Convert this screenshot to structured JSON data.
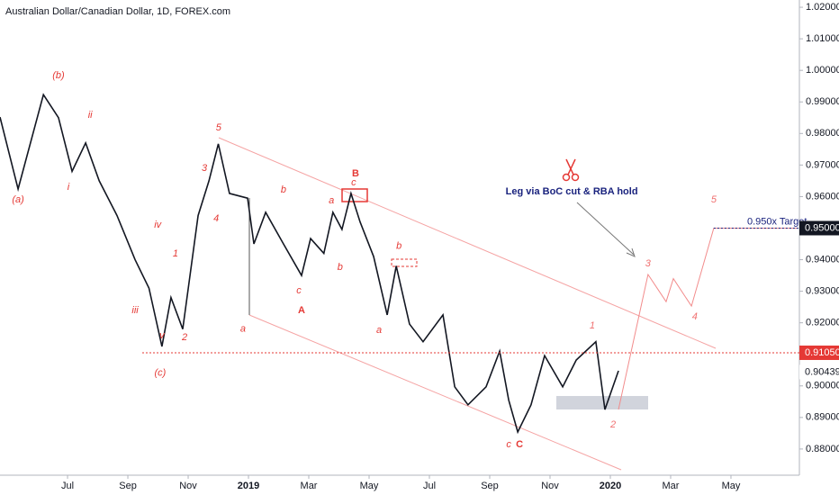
{
  "chart_data": {
    "type": "line",
    "title": "Australian Dollar/Canadian Dollar, 1D, FOREX.com",
    "xlim": [
      3.76,
      30.18
    ],
    "ylim": [
      0.8717,
      1.0223
    ],
    "xticks": [
      {
        "value": 6,
        "label": "Jul"
      },
      {
        "value": 8,
        "label": "Sep"
      },
      {
        "value": 10,
        "label": "Nov"
      },
      {
        "value": 12,
        "label": "2019"
      },
      {
        "value": 14,
        "label": "Mar"
      },
      {
        "value": 16,
        "label": "May"
      },
      {
        "value": 18,
        "label": "Jul"
      },
      {
        "value": 20,
        "label": "Sep"
      },
      {
        "value": 22,
        "label": "Nov"
      },
      {
        "value": 24,
        "label": "2020"
      },
      {
        "value": 26,
        "label": "Mar"
      },
      {
        "value": 28,
        "label": "May"
      }
    ],
    "yticks": [
      {
        "value": 0.88,
        "label": "0.88000"
      },
      {
        "value": 0.89,
        "label": "0.89000"
      },
      {
        "value": 0.9,
        "label": "0.90000"
      },
      {
        "value": 0.92,
        "label": "0.92000"
      },
      {
        "value": 0.93,
        "label": "0.93000"
      },
      {
        "value": 0.94,
        "label": "0.94000"
      },
      {
        "value": 0.96,
        "label": "0.96000"
      },
      {
        "value": 0.97,
        "label": "0.97000"
      },
      {
        "value": 0.98,
        "label": "0.98000"
      },
      {
        "value": 0.99,
        "label": "0.99000"
      },
      {
        "value": 1.0,
        "label": "1.00000"
      },
      {
        "value": 1.01,
        "label": "1.01000"
      },
      {
        "value": 1.02,
        "label": "1.02000"
      }
    ],
    "series": [
      {
        "color": "#131722",
        "x": [
          3.76,
          4.36,
          5.2,
          5.7,
          6.15,
          6.6,
          7.05,
          7.64,
          8.24,
          8.7,
          9.13,
          9.43,
          9.82,
          10.33,
          10.69,
          11.0,
          11.37,
          11.97,
          12.18,
          12.57,
          13.16,
          13.76,
          14.06,
          14.5,
          14.8,
          15.1,
          15.4,
          15.7,
          16.15,
          16.6,
          16.9,
          17.34,
          17.79,
          18.45,
          18.84,
          19.28,
          19.88,
          20.33,
          20.63,
          20.93,
          21.37,
          21.82,
          22.42,
          22.87,
          23.52,
          23.82,
          24.27
        ],
        "values": [
          0.9852,
          0.9624,
          0.9923,
          0.985,
          0.968,
          0.977,
          0.965,
          0.954,
          0.94,
          0.931,
          0.9125,
          0.928,
          0.918,
          0.954,
          0.965,
          0.9767,
          0.961,
          0.9595,
          0.945,
          0.955,
          0.945,
          0.935,
          0.9467,
          0.942,
          0.955,
          0.9496,
          0.961,
          0.952,
          0.941,
          0.9225,
          0.938,
          0.9196,
          0.914,
          0.9225,
          0.8997,
          0.894,
          0.8997,
          0.911,
          0.8955,
          0.8854,
          0.894,
          0.9096,
          0.8997,
          0.9082,
          0.914,
          0.8925,
          0.9048
        ]
      },
      {
        "color": "#f28b8b",
        "x": [
          24.27,
          25.25,
          25.85,
          26.09,
          26.69,
          27.43,
          30.18
        ],
        "values": [
          0.8925,
          0.9353,
          0.9267,
          0.934,
          0.9253,
          0.95,
          0.95
        ]
      }
    ],
    "price_tags": [
      {
        "value": 0.95,
        "label": "0.95000",
        "color": "#131722",
        "text": "0.950x Target"
      },
      {
        "value": 0.9105,
        "label": "0.91050",
        "color": "#e53935"
      },
      {
        "value": 0.90439,
        "label": "0.90439",
        "color": "#ffffff"
      }
    ],
    "annotations": [
      {
        "text": "(a)",
        "x": 4.36,
        "y": 0.959,
        "color": "#e53935"
      },
      {
        "text": "(b)",
        "x": 5.7,
        "y": 0.9983,
        "color": "#e53935"
      },
      {
        "text": "ii",
        "x": 6.75,
        "y": 0.9858,
        "color": "#e53935"
      },
      {
        "text": "i",
        "x": 6.03,
        "y": 0.963,
        "color": "#e53935"
      },
      {
        "text": "iv",
        "x": 8.99,
        "y": 0.951,
        "color": "#e53935"
      },
      {
        "text": "1",
        "x": 9.58,
        "y": 0.9419,
        "color": "#e53935"
      },
      {
        "text": "iii",
        "x": 8.24,
        "y": 0.9239,
        "color": "#e53935"
      },
      {
        "text": "v",
        "x": 9.13,
        "y": 0.9159,
        "color": "#e53935"
      },
      {
        "text": "(c)",
        "x": 9.07,
        "y": 0.904,
        "color": "#e53935"
      },
      {
        "text": "2",
        "x": 9.88,
        "y": 0.9153,
        "color": "#e53935"
      },
      {
        "text": "5",
        "x": 11.01,
        "y": 0.9818,
        "color": "#e53935"
      },
      {
        "text": "3",
        "x": 10.54,
        "y": 0.969,
        "color": "#e53935"
      },
      {
        "text": "4",
        "x": 10.93,
        "y": 0.953,
        "color": "#e53935"
      },
      {
        "text": "a",
        "x": 11.82,
        "y": 0.918,
        "color": "#e53935"
      },
      {
        "text": "b",
        "x": 13.16,
        "y": 0.9621,
        "color": "#e53935"
      },
      {
        "text": "c",
        "x": 13.67,
        "y": 0.9302,
        "color": "#e53935"
      },
      {
        "text": "A",
        "x": 13.76,
        "y": 0.9239,
        "color": "#e53935",
        "bold": true
      },
      {
        "text": "a",
        "x": 14.75,
        "y": 0.9587,
        "color": "#e53935"
      },
      {
        "text": "b",
        "x": 15.04,
        "y": 0.9376,
        "color": "#e53935"
      },
      {
        "text": "B",
        "x": 15.55,
        "y": 0.9672,
        "color": "#e53935",
        "bold": true
      },
      {
        "text": "c",
        "x": 15.49,
        "y": 0.9644,
        "color": "#e53935"
      },
      {
        "text": "b",
        "x": 16.99,
        "y": 0.9442,
        "color": "#e53935"
      },
      {
        "text": "a",
        "x": 16.33,
        "y": 0.9176,
        "color": "#e53935"
      },
      {
        "text": "c",
        "x": 20.63,
        "y": 0.8814,
        "color": "#e53935"
      },
      {
        "text": "C",
        "x": 20.99,
        "y": 0.8814,
        "color": "#e53935",
        "bold": true
      },
      {
        "text": "1",
        "x": 23.4,
        "y": 0.919,
        "color": "#f07070"
      },
      {
        "text": "2",
        "x": 24.09,
        "y": 0.8877,
        "color": "#f07070"
      },
      {
        "text": "3",
        "x": 25.25,
        "y": 0.9387,
        "color": "#f07070"
      },
      {
        "text": "4",
        "x": 26.8,
        "y": 0.9219,
        "color": "#f07070"
      },
      {
        "text": "5",
        "x": 27.43,
        "y": 0.959,
        "color": "#f07070"
      },
      {
        "text": "Leg via BoC cut & RBA hold",
        "x": 22.72,
        "y": 0.9615,
        "color": "#1a237e"
      }
    ]
  }
}
